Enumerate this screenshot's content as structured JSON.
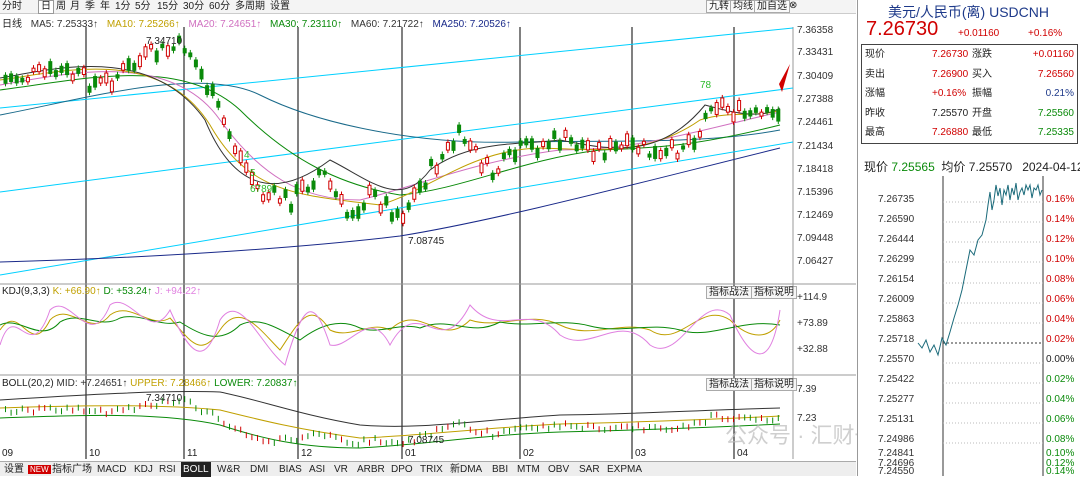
{
  "toolbar": {
    "periods": [
      "分时",
      "日",
      "周",
      "月",
      "季",
      "年",
      "1分",
      "5分",
      "15分",
      "30分",
      "60分",
      "多周期",
      "设置"
    ],
    "active_period": "日",
    "right_buttons": [
      "九转",
      "均线",
      "加自选"
    ]
  },
  "ma_legend": {
    "chart_label": "日线",
    "ma5": "MA5: 7.25333↑",
    "ma10": "MA10: 7.25266↑",
    "ma20": "MA20: 7.24651↑",
    "ma30": "MA30: 7.23110↑",
    "ma60": "MA60: 7.21722↑",
    "ma250": "MA250: 7.20526↑"
  },
  "price_axis": [
    "7.36358",
    "7.33431",
    "7.30409",
    "7.27388",
    "7.24461",
    "7.21434",
    "7.18418",
    "7.15396",
    "7.12469",
    "7.09448",
    "7.06427"
  ],
  "annotations": {
    "high": "7.34710",
    "low": "7.08745",
    "nine_a": "78",
    "nine_b": "6789",
    "nine_c": "4",
    "nine_d": "5"
  },
  "kdj": {
    "legend_name": "KDJ(9,3,3)",
    "k": "K: +66.90↑",
    "d": "D: +53.24↑",
    "j": "J: +94.22↑",
    "axis": [
      "+114.9",
      "+73.89",
      "+32.88"
    ],
    "btn1": "指标战法",
    "btn2": "指标说明"
  },
  "boll": {
    "legend_name": "BOLL(20,2)",
    "mid": "MID: +7.24651↑",
    "upper": "UPPER: 7.28466↑",
    "lower": "LOWER: 7.20837↑",
    "axis": [
      "7.39",
      "7.23"
    ],
    "high": "7.34710",
    "low": "7.08745",
    "btn1": "指标战法",
    "btn2": "指标说明"
  },
  "date_axis": [
    "09",
    "10",
    "11",
    "12",
    "01",
    "02",
    "03",
    "04"
  ],
  "tabs": [
    "设置",
    "NEW",
    "指标广场",
    "MACD",
    "KDJ",
    "RSI",
    "BOLL",
    "W&R",
    "DMI",
    "BIAS",
    "ASI",
    "VR",
    "ARBR",
    "DPO",
    "TRIX",
    "新DMA",
    "BBI",
    "MTM",
    "OBV",
    "SAR",
    "EXPMA"
  ],
  "active_tab": "BOLL",
  "info": {
    "title": "美元/人民币(离) USDCNH",
    "price": "7.26730",
    "change": "+0.01160",
    "change_pct": "+0.16%",
    "rows": [
      [
        "现价",
        "7.26730",
        "涨跌",
        "+0.01160"
      ],
      [
        "卖出",
        "7.26900",
        "买入",
        "7.26560"
      ],
      [
        "涨幅",
        "+0.16%",
        "振幅",
        "0.21%"
      ],
      [
        "昨收",
        "7.25570",
        "开盘",
        "7.25560"
      ],
      [
        "最高",
        "7.26880",
        "最低",
        "7.25335"
      ]
    ],
    "tick_now_label": "现价",
    "tick_now": "7.25565",
    "tick_avg_label": "均价",
    "tick_avg": "7.25570",
    "tick_date": "2024-04-12",
    "tick_axis": [
      "7.26735",
      "7.26590",
      "7.26444",
      "7.26299",
      "7.26154",
      "7.26009",
      "7.25863",
      "7.25718",
      "7.25570",
      "7.25422",
      "7.25277",
      "7.25131",
      "7.24986",
      "7.24841",
      "7.24696",
      "7.24550"
    ],
    "tick_pct": [
      "0.16%",
      "0.14%",
      "0.12%",
      "0.10%",
      "0.08%",
      "0.06%",
      "0.04%",
      "0.02%",
      "0.00%",
      "0.02%",
      "0.04%",
      "0.06%",
      "0.08%",
      "0.10%",
      "0.12%",
      "0.14%"
    ]
  },
  "watermark": "公众号 · 汇财一分钟",
  "colors": {
    "up": "#d00000",
    "down": "#0a8a0a",
    "channel": "#00d0ff",
    "accent": "#1e3a8a"
  }
}
